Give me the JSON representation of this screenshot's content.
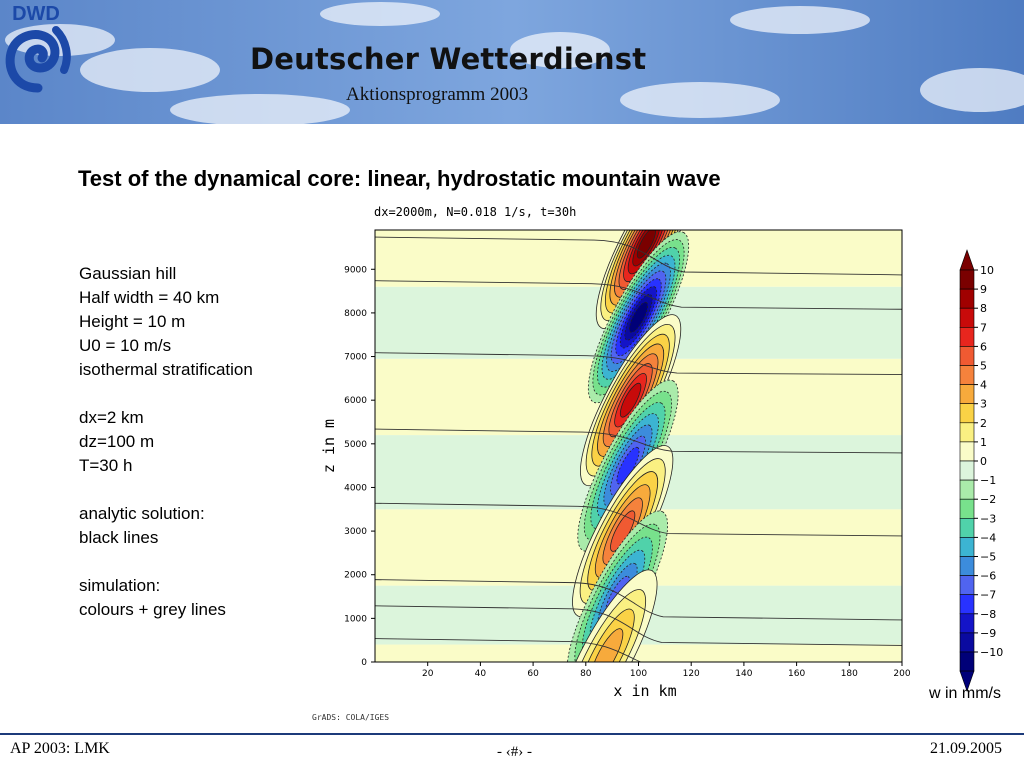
{
  "header": {
    "organization": "Deutscher Wetterdienst",
    "subtitle": "Aktionsprogramm 2003",
    "logo_text": "DWD"
  },
  "slide": {
    "title": "Test of the dynamical core: linear, hydrostatic mountain wave"
  },
  "parameters": {
    "block1": [
      "Gaussian hill",
      "Half width = 40 km",
      "Height = 10 m",
      "U0 = 10 m/s",
      "isothermal stratification"
    ],
    "block2": [
      "dx=2 km",
      "dz=100 m",
      "T=30 h"
    ],
    "block3": [
      "analytic solution:",
      "black lines"
    ],
    "block4": [
      "simulation:",
      "colours + grey lines"
    ]
  },
  "chart_data": {
    "type": "contour",
    "title": "dx=2000m, N=0.018 1/s, t=30h",
    "xlabel": "x in km",
    "ylabel": "z in m",
    "xlim": [
      0,
      200
    ],
    "ylim": [
      0,
      9900
    ],
    "x_ticks": [
      20,
      40,
      60,
      80,
      100,
      120,
      140,
      160,
      180,
      200
    ],
    "y_ticks": [
      0,
      1000,
      2000,
      3000,
      4000,
      5000,
      6000,
      7000,
      8000,
      9000
    ],
    "colorbar_label": "w in mm/s",
    "colorbar_levels": [
      10,
      9,
      8,
      7,
      6,
      5,
      4,
      3,
      2,
      1,
      0,
      -1,
      -2,
      -3,
      -4,
      -5,
      -6,
      -7,
      -8,
      -9,
      -10
    ],
    "colorbar_colors": [
      "#7a0000",
      "#a00000",
      "#c80a0a",
      "#e8261e",
      "#f05a32",
      "#f5823c",
      "#f7aa3c",
      "#fad246",
      "#faf082",
      "#fafcc8",
      "#dcf5dc",
      "#aaebaa",
      "#78e18c",
      "#50d2aa",
      "#3cb4d2",
      "#3c8cdc",
      "#5064f0",
      "#2832ff",
      "#1414c8",
      "#0a0aa0",
      "#000078"
    ],
    "lobes": [
      {
        "x": 103,
        "z": 9600,
        "w": 9
      },
      {
        "x": 100,
        "z": 7900,
        "w": -9
      },
      {
        "x": 97,
        "z": 6000,
        "w": 7
      },
      {
        "x": 96,
        "z": 4500,
        "w": -6
      },
      {
        "x": 94,
        "z": 3000,
        "w": 5
      },
      {
        "x": 92,
        "z": 1500,
        "w": -5
      },
      {
        "x": 88,
        "z": 150,
        "w": 3
      }
    ],
    "streamline_levels": [
      400,
      1150,
      1750,
      3500,
      5200,
      6950,
      8600,
      9600
    ],
    "credit": "GrADS: COLA/IGES"
  },
  "footer": {
    "left": "AP 2003: LMK",
    "center": "- ‹#› -",
    "right": "21.09.2005"
  }
}
